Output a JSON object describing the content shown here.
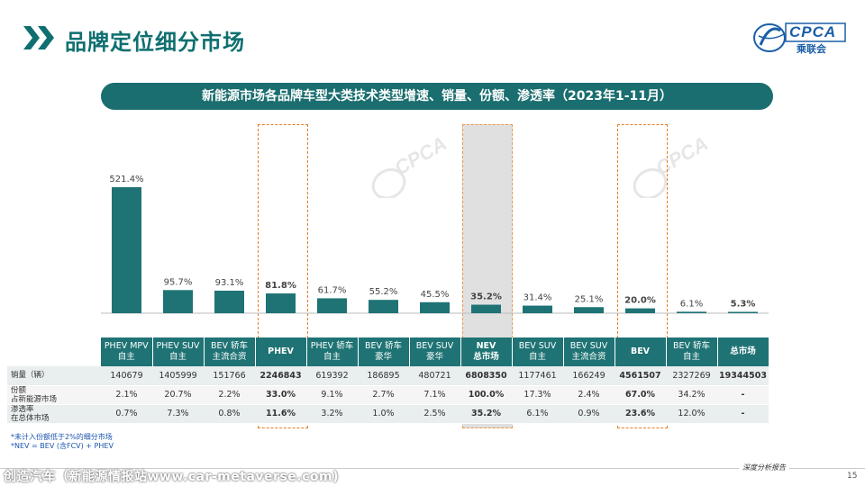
{
  "page": {
    "title": "品牌定位细分市场",
    "subtitle": "新能源市场各品牌车型大类技术类型增速、销量、份额、渗透率（2023年1-11月）",
    "logo_text": "CPCA",
    "logo_sub": "乘联会",
    "watermark_text": "CPCA",
    "page_number": "15",
    "footer_report": "深度分析报告",
    "footer_url": "创造汽车（新能源情报站www.car-metaverse.com)"
  },
  "colors": {
    "accent": "#0f6f70",
    "bar": "#1f7374",
    "header": "#1f7374",
    "highlight": "#e67e22",
    "note": "#1a55b0"
  },
  "chart_data": {
    "type": "bar",
    "categories": [
      "PHEV MPV 自主",
      "PHEV SUV 自主",
      "BEV 轿车 主流合资",
      "PHEV",
      "PHEV 轿车 自主",
      "BEV 轿车 豪华",
      "BEV SUV 豪华",
      "NEV 总市场",
      "BEV SUV 自主",
      "BEV SUV 主流合资",
      "BEV",
      "BEV 轿车 自主",
      "总市场"
    ],
    "values": [
      521.4,
      95.7,
      93.1,
      81.8,
      61.7,
      55.2,
      45.5,
      35.2,
      31.4,
      25.1,
      20.0,
      6.1,
      5.3
    ],
    "labels": [
      "521.4%",
      "95.7%",
      "93.1%",
      "81.8%",
      "61.7%",
      "55.2%",
      "45.5%",
      "35.2%",
      "31.4%",
      "25.1%",
      "20.0%",
      "6.1%",
      "5.3%"
    ],
    "bold": [
      false,
      false,
      false,
      true,
      false,
      false,
      false,
      true,
      false,
      false,
      true,
      false,
      true
    ],
    "ylim": [
      0,
      560
    ]
  },
  "table": {
    "headers": [
      "PHEV  MPV\n自主",
      "PHEV  SUV\n自主",
      "BEV 轿车\n主流合资",
      "PHEV",
      "PHEV 轿车\n自主",
      "BEV 轿车\n豪华",
      "BEV SUV\n豪华",
      "NEV\n总市场",
      "BEV SUV\n自主",
      "BEV SUV\n主流合资",
      "BEV",
      "BEV 轿车\n自主",
      "总市场"
    ],
    "header_bold": [
      false,
      false,
      false,
      true,
      false,
      false,
      false,
      true,
      false,
      false,
      true,
      false,
      true
    ],
    "rows": [
      {
        "label": "销量（辆）",
        "values": [
          "140679",
          "1405999",
          "151766",
          "2246843",
          "619392",
          "186895",
          "480721",
          "6808350",
          "1177461",
          "166249",
          "4561507",
          "2327269",
          "19344503"
        ]
      },
      {
        "label": "份额\n占新能源市场",
        "values": [
          "2.1%",
          "20.7%",
          "2.2%",
          "33.0%",
          "9.1%",
          "2.7%",
          "7.1%",
          "100.0%",
          "17.3%",
          "2.4%",
          "67.0%",
          "34.2%",
          "-"
        ]
      },
      {
        "label": "渗透率\n在总体市场",
        "values": [
          "0.7%",
          "7.3%",
          "0.8%",
          "11.6%",
          "3.2%",
          "1.0%",
          "2.5%",
          "35.2%",
          "6.1%",
          "0.9%",
          "23.6%",
          "12.0%",
          "-"
        ]
      }
    ]
  },
  "notes": [
    "*未计入份额低于2%的细分市场",
    "*NEV = BEV (含FCV) + PHEV"
  ]
}
